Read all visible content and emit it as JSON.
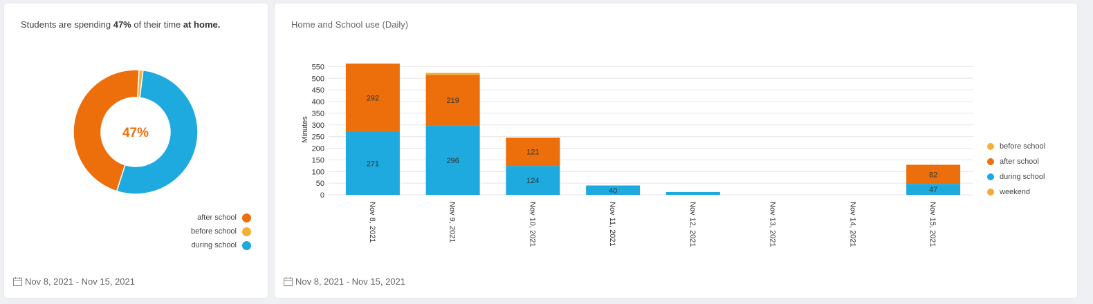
{
  "summary": {
    "prefix": "Students are spending ",
    "percent": "47%",
    "middle": " of their time ",
    "location": "at home."
  },
  "donut": {
    "center_label": "47%",
    "legend": [
      {
        "label": "after school",
        "color": "#ec6f0b"
      },
      {
        "label": "before school",
        "color": "#f2b134"
      },
      {
        "label": "during school",
        "color": "#1eaadf"
      }
    ]
  },
  "left_footer": {
    "date_range": "Nov 8, 2021 - Nov 15, 2021",
    "icon": "calendar-icon"
  },
  "right_footer": {
    "date_range": "Nov 8, 2021 - Nov 15, 2021",
    "icon": "calendar-icon"
  },
  "colors": {
    "after_school": "#ec6f0b",
    "before_school": "#f2b134",
    "during_school": "#1eaadf",
    "weekend": "#f4a83a"
  },
  "chart_data": [
    {
      "type": "pie",
      "title": "Students are spending 47% of their time at home.",
      "categories": [
        "during school",
        "after school",
        "before school"
      ],
      "values": [
        53,
        46,
        1
      ],
      "colors": [
        "#1eaadf",
        "#ec6f0b",
        "#f2b134"
      ],
      "center_label": "47%"
    },
    {
      "type": "bar",
      "stacked": true,
      "title": "Home and School use (Daily)",
      "xlabel": "",
      "ylabel": "Minutes",
      "ylim": [
        0,
        560
      ],
      "yticks": [
        0,
        50,
        100,
        150,
        200,
        250,
        300,
        350,
        400,
        450,
        500,
        550
      ],
      "grid": true,
      "legend_position": "right",
      "categories": [
        "Nov 8, 2021",
        "Nov 9, 2021",
        "Nov 10, 2021",
        "Nov 11, 2021",
        "Nov 12, 2021",
        "Nov 13, 2021",
        "Nov 14, 2021",
        "Nov 15, 2021"
      ],
      "series": [
        {
          "name": "during school",
          "color": "#1eaadf",
          "values": [
            271,
            296,
            124,
            40,
            12,
            0,
            0,
            47
          ],
          "labels": [
            "271",
            "296",
            "124",
            "40",
            "",
            "",
            "",
            "47"
          ]
        },
        {
          "name": "after school",
          "color": "#ec6f0b",
          "values": [
            292,
            219,
            121,
            0,
            0,
            0,
            0,
            82
          ],
          "labels": [
            "292",
            "219",
            "121",
            "",
            "",
            "",
            "",
            "82"
          ]
        },
        {
          "name": "before school",
          "color": "#f2b134",
          "values": [
            0,
            8,
            0,
            0,
            0,
            0,
            0,
            0
          ],
          "labels": [
            "",
            "",
            "",
            "",
            "",
            "",
            "",
            ""
          ]
        }
      ],
      "legend": [
        {
          "label": "before school",
          "color": "#f2b134"
        },
        {
          "label": "after school",
          "color": "#ec6f0b"
        },
        {
          "label": "during school",
          "color": "#1eaadf"
        },
        {
          "label": "weekend",
          "color": "#f4a83a"
        }
      ]
    }
  ]
}
